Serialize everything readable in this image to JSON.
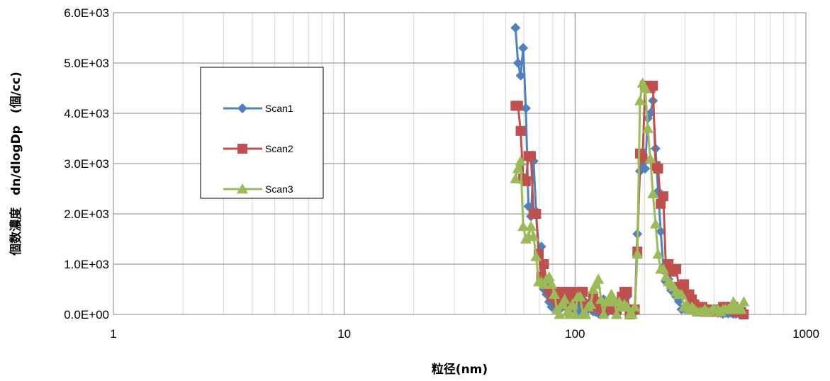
{
  "chart_data": {
    "type": "scatter",
    "xlabel": "粒径(nm)",
    "ylabel": "個数濃度　dn/dlogDp　(個/cc)",
    "xscale": "log",
    "xlim": [
      1,
      1000
    ],
    "ylim": [
      0,
      6000
    ],
    "x_tick_labels": [
      "1",
      "10",
      "100",
      "1000"
    ],
    "y_tick_labels": [
      "0.0E+00",
      "1.0E+03",
      "2.0E+03",
      "3.0E+03",
      "4.0E+03",
      "5.0E+03",
      "6.0E+03"
    ],
    "grid": true,
    "legend_position": "left",
    "series": [
      {
        "name": "Scan1",
        "color": "#4F81BD",
        "marker": "diamond",
        "points": [
          [
            55.2,
            5700
          ],
          [
            56.6,
            5000
          ],
          [
            58.1,
            4750
          ],
          [
            59.6,
            5300
          ],
          [
            61.2,
            4100
          ],
          [
            62.8,
            2150
          ],
          [
            64.4,
            1950
          ],
          [
            66.1,
            3050
          ],
          [
            67.8,
            2050
          ],
          [
            69.6,
            1250
          ],
          [
            71.4,
            1350
          ],
          [
            73.3,
            500
          ],
          [
            75.2,
            400
          ],
          [
            77.2,
            250
          ],
          [
            79.2,
            150
          ],
          [
            81.3,
            120
          ],
          [
            83.4,
            90
          ],
          [
            85.6,
            170
          ],
          [
            87.8,
            140
          ],
          [
            90.1,
            310
          ],
          [
            92.5,
            380
          ],
          [
            94.9,
            140
          ],
          [
            97.4,
            250
          ],
          [
            100,
            80
          ],
          [
            102.6,
            200
          ],
          [
            105.3,
            50
          ],
          [
            108.1,
            300
          ],
          [
            110.9,
            60
          ],
          [
            113.8,
            100
          ],
          [
            116.8,
            150
          ],
          [
            119.9,
            60
          ],
          [
            123,
            50
          ],
          [
            126.2,
            20
          ],
          [
            129.5,
            0
          ],
          [
            132.9,
            300
          ],
          [
            136.4,
            20
          ],
          [
            140,
            250
          ],
          [
            143.7,
            150
          ],
          [
            147.5,
            100
          ],
          [
            151.4,
            0
          ],
          [
            155.3,
            200
          ],
          [
            159.4,
            250
          ],
          [
            163.6,
            350
          ],
          [
            167.9,
            350
          ],
          [
            172.3,
            20
          ],
          [
            176.8,
            30
          ],
          [
            181.4,
            40
          ],
          [
            186.2,
            1600
          ],
          [
            191.1,
            2850
          ],
          [
            196.1,
            3050
          ],
          [
            201.2,
            2900
          ],
          [
            206.5,
            3900
          ],
          [
            211.9,
            4000
          ],
          [
            217.5,
            4250
          ],
          [
            223.2,
            3300
          ],
          [
            229,
            2450
          ],
          [
            235,
            1650
          ],
          [
            241.2,
            950
          ],
          [
            247.5,
            650
          ],
          [
            254,
            700
          ],
          [
            260.7,
            480
          ],
          [
            267.5,
            500
          ],
          [
            274.5,
            350
          ],
          [
            281.7,
            260
          ],
          [
            289.1,
            100
          ],
          [
            296.7,
            120
          ],
          [
            304.5,
            140
          ],
          [
            312.5,
            130
          ],
          [
            320.7,
            140
          ],
          [
            329.1,
            100
          ],
          [
            337.7,
            60
          ],
          [
            346.6,
            120
          ],
          [
            355.7,
            100
          ],
          [
            365,
            80
          ],
          [
            374.6,
            60
          ],
          [
            384.4,
            50
          ],
          [
            394.5,
            40
          ],
          [
            404.8,
            60
          ],
          [
            415.4,
            30
          ],
          [
            426.3,
            30
          ],
          [
            437.5,
            10
          ],
          [
            449,
            30
          ],
          [
            460.8,
            20
          ],
          [
            472.9,
            30
          ],
          [
            485.3,
            10
          ],
          [
            498,
            10
          ],
          [
            511.1,
            20
          ],
          [
            524.5,
            10
          ],
          [
            538.2,
            0
          ]
        ]
      },
      {
        "name": "Scan2",
        "color": "#C0504D",
        "marker": "square",
        "points": [
          [
            55.2,
            4150
          ],
          [
            56.6,
            4150
          ],
          [
            58.1,
            3650
          ],
          [
            59.6,
            2700
          ],
          [
            61.2,
            2650
          ],
          [
            62.8,
            3150
          ],
          [
            64.4,
            3150
          ],
          [
            66.1,
            2000
          ],
          [
            67.8,
            2000
          ],
          [
            69.6,
            1200
          ],
          [
            71.4,
            750
          ],
          [
            73.3,
            1000
          ],
          [
            75.2,
            600
          ],
          [
            77.2,
            500
          ],
          [
            79.2,
            350
          ],
          [
            81.3,
            450
          ],
          [
            83.4,
            250
          ],
          [
            85.6,
            200
          ],
          [
            87.8,
            450
          ],
          [
            90.1,
            300
          ],
          [
            92.5,
            450
          ],
          [
            94.9,
            150
          ],
          [
            97.4,
            350
          ],
          [
            100,
            450
          ],
          [
            102.6,
            300
          ],
          [
            105.3,
            400
          ],
          [
            108.1,
            450
          ],
          [
            110.9,
            200
          ],
          [
            113.8,
            150
          ],
          [
            116.8,
            150
          ],
          [
            119.9,
            350
          ],
          [
            123,
            250
          ],
          [
            126.2,
            200
          ],
          [
            129.5,
            100
          ],
          [
            132.9,
            150
          ],
          [
            136.4,
            150
          ],
          [
            140,
            100
          ],
          [
            143.7,
            250
          ],
          [
            147.5,
            150
          ],
          [
            151.4,
            100
          ],
          [
            155.3,
            200
          ],
          [
            159.4,
            350
          ],
          [
            163.6,
            450
          ],
          [
            167.9,
            450
          ],
          [
            172.3,
            0
          ],
          [
            176.8,
            100
          ],
          [
            181.4,
            100
          ],
          [
            186.2,
            1250
          ],
          [
            191.1,
            3200
          ],
          [
            196.1,
            3100
          ],
          [
            201.2,
            4550
          ],
          [
            206.5,
            4550
          ],
          [
            211.9,
            4500
          ],
          [
            217.5,
            4550
          ],
          [
            223.2,
            2950
          ],
          [
            229,
            2900
          ],
          [
            235,
            2200
          ],
          [
            241.2,
            2350
          ],
          [
            247.5,
            900
          ],
          [
            254,
            1000
          ],
          [
            260.7,
            850
          ],
          [
            267.5,
            900
          ],
          [
            274.5,
            900
          ],
          [
            281.7,
            550
          ],
          [
            289.1,
            500
          ],
          [
            296.7,
            600
          ],
          [
            304.5,
            400
          ],
          [
            312.5,
            400
          ],
          [
            320.7,
            300
          ],
          [
            329.1,
            200
          ],
          [
            337.7,
            150
          ],
          [
            346.6,
            100
          ],
          [
            355.7,
            150
          ],
          [
            365,
            50
          ],
          [
            374.6,
            50
          ],
          [
            384.4,
            100
          ],
          [
            394.5,
            50
          ],
          [
            404.8,
            50
          ],
          [
            415.4,
            50
          ],
          [
            426.3,
            100
          ],
          [
            437.5,
            150
          ],
          [
            449,
            150
          ],
          [
            460.8,
            100
          ],
          [
            472.9,
            150
          ],
          [
            485.3,
            150
          ],
          [
            498,
            50
          ],
          [
            511.1,
            50
          ],
          [
            524.5,
            50
          ],
          [
            538.2,
            0
          ]
        ]
      },
      {
        "name": "Scan3",
        "color": "#9BBB59",
        "marker": "triangle",
        "points": [
          [
            55.2,
            2700
          ],
          [
            56.6,
            2900
          ],
          [
            58.1,
            3050
          ],
          [
            59.6,
            1750
          ],
          [
            61.2,
            1500
          ],
          [
            62.8,
            1550
          ],
          [
            64.4,
            1750
          ],
          [
            66.1,
            1550
          ],
          [
            67.8,
            1150
          ],
          [
            69.6,
            650
          ],
          [
            71.4,
            650
          ],
          [
            73.3,
            600
          ],
          [
            75.2,
            700
          ],
          [
            77.2,
            750
          ],
          [
            79.2,
            600
          ],
          [
            81.3,
            400
          ],
          [
            83.4,
            100
          ],
          [
            85.6,
            0
          ],
          [
            87.8,
            200
          ],
          [
            90.1,
            300
          ],
          [
            92.5,
            50
          ],
          [
            94.9,
            0
          ],
          [
            97.4,
            200
          ],
          [
            100,
            0
          ],
          [
            102.6,
            350
          ],
          [
            105.3,
            350
          ],
          [
            108.1,
            0
          ],
          [
            110.9,
            0
          ],
          [
            113.8,
            150
          ],
          [
            116.8,
            200
          ],
          [
            119.9,
            500
          ],
          [
            123,
            600
          ],
          [
            126.2,
            700
          ],
          [
            129.5,
            300
          ],
          [
            132.9,
            0
          ],
          [
            136.4,
            250
          ],
          [
            140,
            250
          ],
          [
            143.7,
            400
          ],
          [
            147.5,
            300
          ],
          [
            151.4,
            0
          ],
          [
            155.3,
            250
          ],
          [
            159.4,
            150
          ],
          [
            163.6,
            200
          ],
          [
            167.9,
            150
          ],
          [
            172.3,
            0
          ],
          [
            176.8,
            0
          ],
          [
            181.4,
            150
          ],
          [
            186.2,
            1200
          ],
          [
            191.1,
            4250
          ],
          [
            196.1,
            4600
          ],
          [
            201.2,
            4500
          ],
          [
            206.5,
            3700
          ],
          [
            211.9,
            3100
          ],
          [
            217.5,
            2400
          ],
          [
            223.2,
            1800
          ],
          [
            229,
            1200
          ],
          [
            235,
            900
          ],
          [
            241.2,
            900
          ],
          [
            247.5,
            750
          ],
          [
            254,
            650
          ],
          [
            260.7,
            600
          ],
          [
            267.5,
            550
          ],
          [
            274.5,
            450
          ],
          [
            281.7,
            400
          ],
          [
            289.1,
            400
          ],
          [
            296.7,
            150
          ],
          [
            304.5,
            200
          ],
          [
            312.5,
            100
          ],
          [
            320.7,
            150
          ],
          [
            329.1,
            100
          ],
          [
            337.7,
            50
          ],
          [
            346.6,
            50
          ],
          [
            355.7,
            50
          ],
          [
            365,
            100
          ],
          [
            374.6,
            50
          ],
          [
            384.4,
            50
          ],
          [
            394.5,
            100
          ],
          [
            404.8,
            100
          ],
          [
            415.4,
            100
          ],
          [
            426.3,
            50
          ],
          [
            437.5,
            100
          ],
          [
            449,
            100
          ],
          [
            460.8,
            100
          ],
          [
            472.9,
            150
          ],
          [
            485.3,
            250
          ],
          [
            498,
            100
          ],
          [
            511.1,
            100
          ],
          [
            524.5,
            100
          ],
          [
            538.2,
            250
          ]
        ]
      }
    ]
  }
}
